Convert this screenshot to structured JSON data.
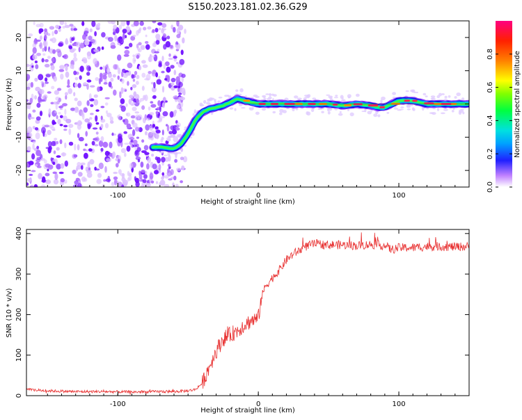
{
  "figure": {
    "title": "S150.2023.181.02.36.G29"
  },
  "chart_data": [
    {
      "type": "heatmap",
      "xlabel": "Height of straight line (km)",
      "ylabel": "Frequency (Hz)",
      "xlim": [
        -165,
        150
      ],
      "ylim": [
        -25,
        25
      ],
      "x_ticks": [
        -100,
        0,
        100
      ],
      "y_ticks": [
        -20,
        -10,
        0,
        10,
        20
      ],
      "colorbar": {
        "label": "Normalized spectral amplitude",
        "range": [
          0,
          1
        ],
        "ticks": [
          0.0,
          0.2,
          0.4,
          0.6,
          0.8
        ]
      },
      "noise_region_x": [
        -165,
        -60
      ],
      "track": {
        "x": [
          -75,
          -68,
          -60,
          -55,
          -50,
          -45,
          -40,
          -35,
          -30,
          -25,
          -20,
          -15,
          -10,
          -5,
          0,
          10,
          20,
          30,
          40,
          50,
          60,
          70,
          80,
          85,
          90,
          95,
          100,
          110,
          120,
          130,
          140,
          150
        ],
        "freq": [
          -13,
          -13,
          -13.5,
          -12,
          -9,
          -5,
          -2.5,
          -1.5,
          -1,
          -0.5,
          0.5,
          1.5,
          1,
          0.5,
          0,
          0,
          0,
          0,
          0,
          0,
          -0.5,
          0,
          -0.5,
          -1,
          -1,
          0,
          1,
          1,
          0,
          0,
          0,
          0
        ]
      }
    },
    {
      "type": "line",
      "xlabel": "Height of straight line (km)",
      "ylabel": "SNR (10 * v/v)",
      "xlim": [
        -165,
        150
      ],
      "ylim": [
        0,
        410
      ],
      "x_ticks": [
        -100,
        0,
        100
      ],
      "y_ticks": [
        0,
        100,
        200,
        300,
        400
      ],
      "series": [
        {
          "color": "#e83030",
          "x": [
            -165,
            -150,
            -130,
            -110,
            -90,
            -70,
            -60,
            -50,
            -45,
            -40,
            -35,
            -30,
            -25,
            -20,
            -15,
            -10,
            -5,
            0,
            2,
            5,
            10,
            15,
            20,
            25,
            30,
            35,
            40,
            50,
            60,
            70,
            80,
            90,
            95,
            100,
            110,
            120,
            130,
            140,
            150
          ],
          "values": [
            15,
            12,
            10,
            10,
            9,
            10,
            10,
            12,
            15,
            30,
            70,
            110,
            140,
            150,
            160,
            175,
            185,
            190,
            240,
            270,
            290,
            310,
            335,
            350,
            360,
            370,
            375,
            372,
            372,
            370,
            373,
            370,
            360,
            365,
            365,
            368,
            368,
            367,
            368
          ]
        }
      ]
    }
  ]
}
